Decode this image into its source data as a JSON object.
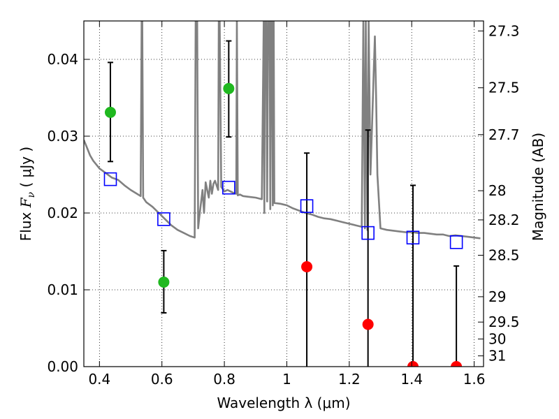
{
  "chart_data": {
    "type": "scatter",
    "xlabel": "Wavelength  λ (μm)",
    "ylabel": "Flux  F_ν  ( μJy )",
    "ylabel_parts": {
      "prefix": "Flux  ",
      "symbol": "F",
      "subscript": "ν",
      "suffix": "  ( μJy )"
    },
    "ylabel_right": "Magnitude (AB)",
    "xlim": [
      0.35,
      1.63
    ],
    "ylim": [
      0.0,
      0.045
    ],
    "grid": true,
    "grid_style": "dotted",
    "x_ticks": [
      0.4,
      0.6,
      0.8,
      1.0,
      1.2,
      1.4,
      1.6
    ],
    "x_tick_labels": [
      "0.4",
      "0.6",
      "0.8",
      "1",
      "1.2",
      "1.4",
      "1.6"
    ],
    "y_ticks": [
      0.0,
      0.01,
      0.02,
      0.03,
      0.04
    ],
    "y_tick_labels": [
      "0.00",
      "0.01",
      "0.02",
      "0.03",
      "0.04"
    ],
    "right_ticks": [
      {
        "label": "27.3",
        "flux": 0.0437
      },
      {
        "label": "27.5",
        "flux": 0.0363
      },
      {
        "label": "27.7",
        "flux": 0.0302
      },
      {
        "label": "28",
        "flux": 0.0229
      },
      {
        "label": "28.2",
        "flux": 0.0191
      },
      {
        "label": "28.5",
        "flux": 0.0145
      },
      {
        "label": "29",
        "flux": 0.0091
      },
      {
        "label": "29.5",
        "flux": 0.0058
      },
      {
        "label": "30",
        "flux": 0.0036
      },
      {
        "label": "31",
        "flux": 0.0014
      }
    ],
    "colors": {
      "detection": "#1fb81f",
      "nondetection": "#ff0000",
      "model_points": "#0000ff",
      "sed": "#808080",
      "errorbar": "#000000"
    },
    "series": [
      {
        "kind": "detections",
        "points": [
          {
            "x": 0.435,
            "y": 0.0331,
            "ylo": 0.0267,
            "yhi": 0.0396
          },
          {
            "x": 0.606,
            "y": 0.011,
            "ylo": 0.007,
            "yhi": 0.0151
          },
          {
            "x": 0.814,
            "y": 0.0362,
            "ylo": 0.0299,
            "yhi": 0.0424
          }
        ]
      },
      {
        "kind": "nondetections",
        "points": [
          {
            "x": 1.064,
            "y": 0.013,
            "ylo": 0.0,
            "yhi": 0.0278
          },
          {
            "x": 1.26,
            "y": 0.0055,
            "ylo": 0.0,
            "yhi": 0.0308
          },
          {
            "x": 1.404,
            "y": 0.0,
            "ylo": 0.0,
            "yhi": 0.0236
          },
          {
            "x": 1.543,
            "y": 0.0,
            "ylo": 0.0,
            "yhi": 0.0131
          }
        ]
      },
      {
        "kind": "model_fluxes",
        "points": [
          {
            "x": 0.435,
            "y": 0.0244
          },
          {
            "x": 0.606,
            "y": 0.0192
          },
          {
            "x": 0.814,
            "y": 0.0233
          },
          {
            "x": 1.064,
            "y": 0.0209
          },
          {
            "x": 1.26,
            "y": 0.0174
          },
          {
            "x": 1.404,
            "y": 0.0168
          },
          {
            "x": 1.543,
            "y": 0.0162
          }
        ]
      },
      {
        "kind": "sed_model",
        "x": [
          0.35,
          0.36,
          0.37,
          0.38,
          0.4,
          0.42,
          0.44,
          0.46,
          0.48,
          0.5,
          0.52,
          0.532,
          0.535,
          0.537,
          0.54,
          0.55,
          0.57,
          0.59,
          0.61,
          0.63,
          0.65,
          0.67,
          0.69,
          0.705,
          0.708,
          0.71,
          0.713,
          0.716,
          0.72,
          0.73,
          0.735,
          0.74,
          0.745,
          0.75,
          0.755,
          0.76,
          0.765,
          0.77,
          0.78,
          0.782,
          0.785,
          0.79,
          0.8,
          0.81,
          0.82,
          0.83,
          0.838,
          0.84,
          0.843,
          0.85,
          0.86,
          0.88,
          0.9,
          0.92,
          0.926,
          0.928,
          0.93,
          0.934,
          0.937,
          0.94,
          0.945,
          0.947,
          0.95,
          0.953,
          0.955,
          0.958,
          0.96,
          0.98,
          1.0,
          1.02,
          1.04,
          1.06,
          1.08,
          1.1,
          1.12,
          1.14,
          1.16,
          1.18,
          1.2,
          1.22,
          1.24,
          1.245,
          1.25,
          1.253,
          1.258,
          1.262,
          1.268,
          1.272,
          1.278,
          1.282,
          1.286,
          1.29,
          1.3,
          1.32,
          1.34,
          1.36,
          1.38,
          1.4,
          1.42,
          1.44,
          1.46,
          1.48,
          1.5,
          1.52,
          1.54,
          1.56,
          1.58,
          1.6,
          1.62
        ],
        "y": [
          0.0295,
          0.0285,
          0.0275,
          0.0268,
          0.0258,
          0.0252,
          0.0246,
          0.0243,
          0.0236,
          0.023,
          0.0225,
          0.0222,
          0.045,
          0.045,
          0.022,
          0.0214,
          0.0208,
          0.02,
          0.0192,
          0.0184,
          0.0178,
          0.0174,
          0.017,
          0.0168,
          0.045,
          0.045,
          0.045,
          0.018,
          0.0195,
          0.023,
          0.02,
          0.024,
          0.023,
          0.022,
          0.0242,
          0.0225,
          0.0238,
          0.0242,
          0.023,
          0.045,
          0.045,
          0.0234,
          0.0228,
          0.023,
          0.0228,
          0.0226,
          0.0225,
          0.045,
          0.0223,
          0.0224,
          0.0222,
          0.0221,
          0.022,
          0.0218,
          0.045,
          0.02,
          0.045,
          0.045,
          0.0215,
          0.045,
          0.045,
          0.0205,
          0.045,
          0.045,
          0.021,
          0.045,
          0.0213,
          0.0212,
          0.021,
          0.0206,
          0.0203,
          0.02,
          0.0198,
          0.0195,
          0.0193,
          0.0192,
          0.019,
          0.0188,
          0.0186,
          0.0184,
          0.0182,
          0.045,
          0.018,
          0.045,
          0.0178,
          0.045,
          0.025,
          0.03,
          0.038,
          0.043,
          0.035,
          0.025,
          0.018,
          0.0178,
          0.0177,
          0.0176,
          0.0175,
          0.0175,
          0.0174,
          0.0174,
          0.0173,
          0.0172,
          0.0172,
          0.017,
          0.0171,
          0.017,
          0.0169,
          0.0168,
          0.0167
        ]
      }
    ]
  }
}
